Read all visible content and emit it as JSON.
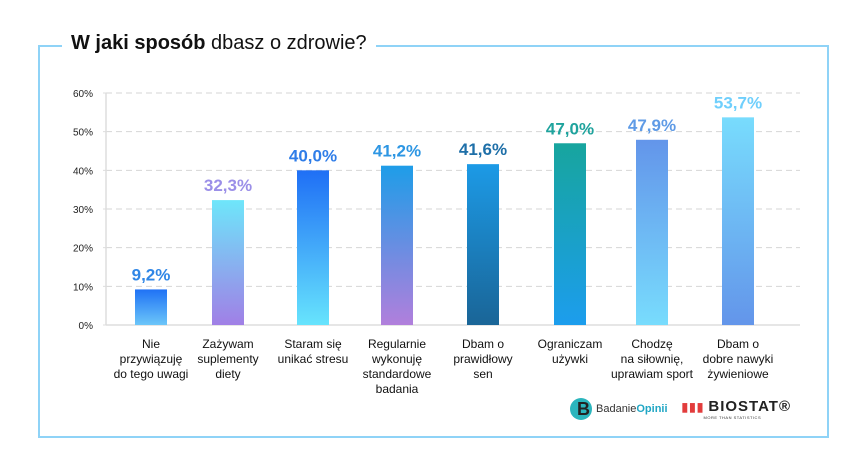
{
  "title": {
    "bold": "W jaki sposób",
    "regular": "dbasz o zdrowie?"
  },
  "chart_data": {
    "type": "bar",
    "categories": [
      [
        "Nie",
        "przywiązuję",
        "do tego uwagi"
      ],
      [
        "Zażywam",
        "suplementy",
        "diety"
      ],
      [
        "Staram się",
        "unikać stresu"
      ],
      [
        "Regularnie",
        "wykonuję",
        "standardowe",
        "badania"
      ],
      [
        "Dbam o",
        "prawidłowy",
        "sen"
      ],
      [
        "Ograniczam",
        "używki"
      ],
      [
        "Chodzę",
        "na siłownię,",
        "uprawiam sport"
      ],
      [
        "Dbam o",
        "dobre nawyki",
        "żywieniowe"
      ]
    ],
    "values": [
      9.2,
      32.3,
      40.0,
      41.2,
      41.6,
      47.0,
      47.9,
      53.7
    ],
    "data_labels": [
      "9,2%",
      "32,3%",
      "40,0%",
      "41,2%",
      "41,6%",
      "47,0%",
      "47,9%",
      "53,7%"
    ],
    "label_colors": [
      "#2f86e6",
      "#9b8fe8",
      "#2f7de8",
      "#2d96e3",
      "#1e6fa8",
      "#1fa39d",
      "#5f9be6",
      "#6fcffc"
    ],
    "bar_gradients": [
      [
        "#1f72f5",
        "#6cc6f9"
      ],
      [
        "#6ee6fa",
        "#a07fe6"
      ],
      [
        "#1f6ff5",
        "#67e4fd"
      ],
      [
        "#1e9de8",
        "#b17fdc"
      ],
      [
        "#1c9ae6",
        "#1a6597"
      ],
      [
        "#17a59e",
        "#1c9ded"
      ],
      [
        "#6395ea",
        "#78dcfd"
      ],
      [
        "#78dcfd",
        "#6395ea"
      ]
    ],
    "yticks": [
      "0%",
      "10%",
      "20%",
      "30%",
      "40%",
      "50%",
      "60%"
    ],
    "ylim": [
      0,
      60
    ],
    "grid": true
  },
  "logos": {
    "badanie": "Badanie",
    "opinii": "Opinii",
    "biostat": "BIOSTAT",
    "biostat_tag": "MORE THAN STATISTICS"
  }
}
